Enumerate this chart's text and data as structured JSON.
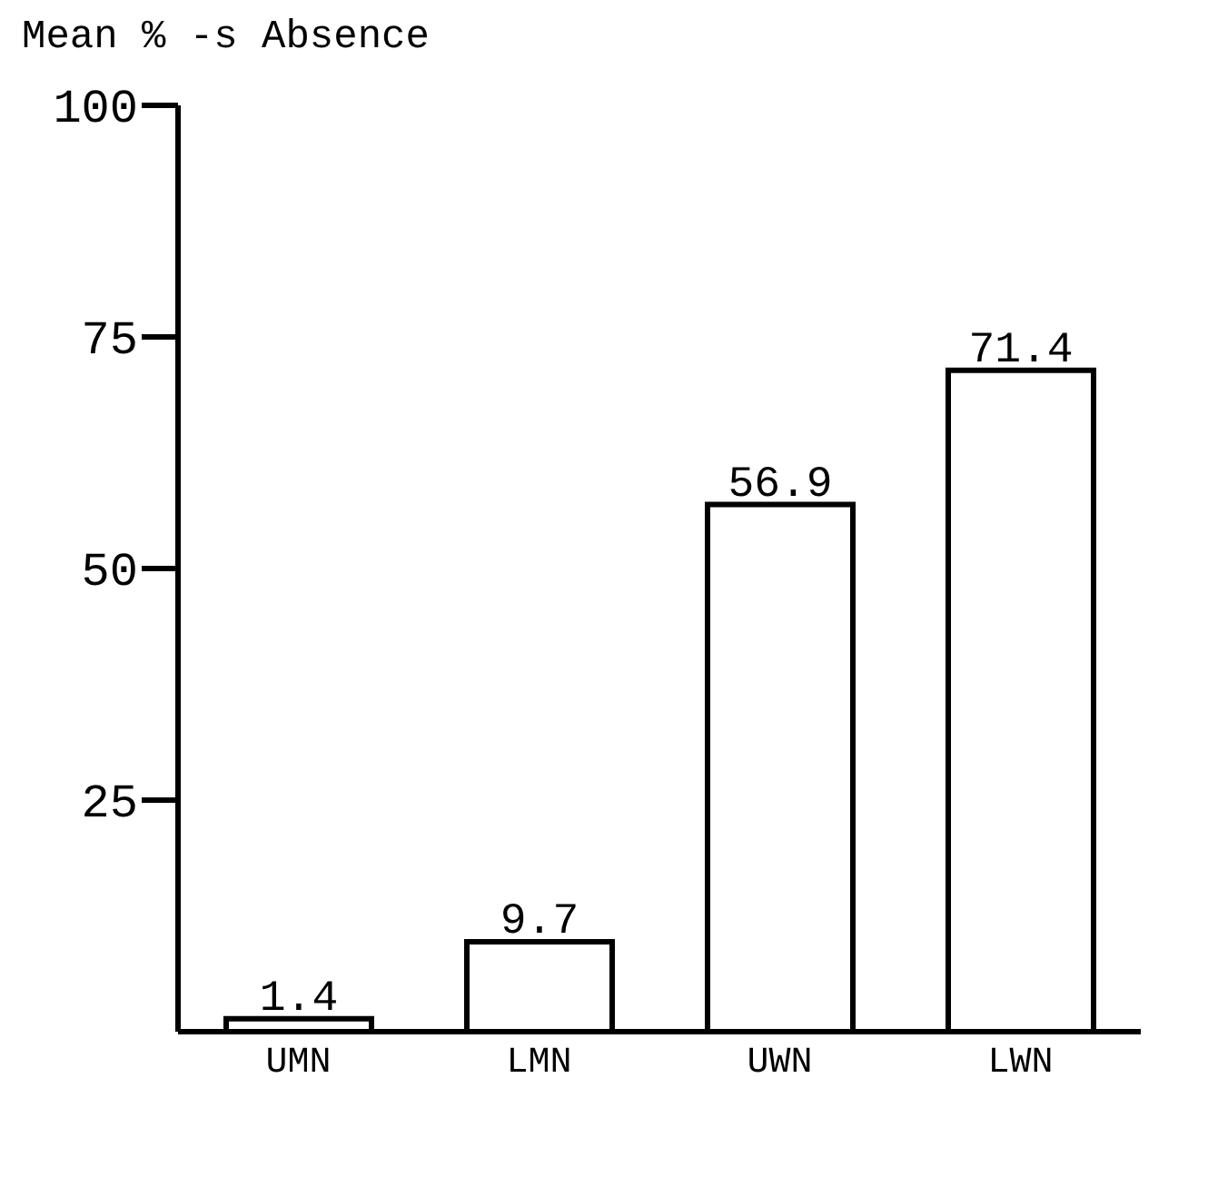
{
  "chart_data": {
    "type": "bar",
    "title": "Mean % -s Absence",
    "categories": [
      "UMN",
      "LMN",
      "UWN",
      "LWN"
    ],
    "values": [
      1.4,
      9.7,
      56.9,
      71.4
    ],
    "color": "#ffffff",
    "ylim": [
      0,
      100
    ],
    "yticks": [
      25,
      50,
      75,
      100
    ],
    "data_labels": true,
    "grid": false,
    "legend": false
  }
}
